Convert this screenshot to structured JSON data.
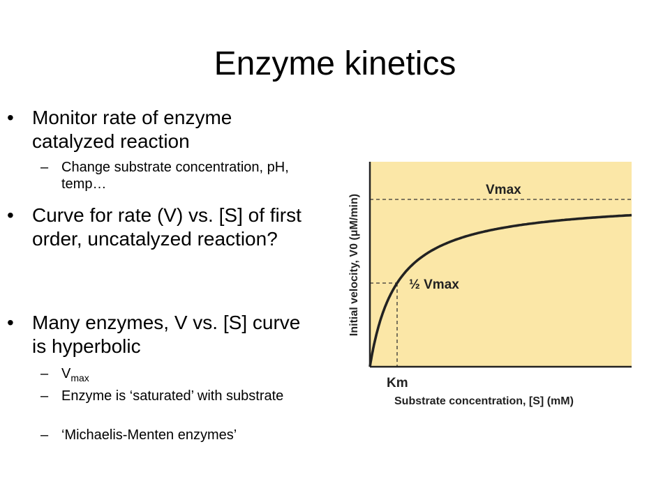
{
  "slide": {
    "title": "Enzyme kinetics",
    "bullets": [
      "Monitor rate of enzyme catalyzed reaction",
      "Curve for rate (V) vs. [S] of first order, uncatalyzed reaction?",
      "Many enzymes, V vs. [S] curve is hyperbolic"
    ],
    "sub_bullets": [
      "Change substrate concentration, pH, temp…",
      "V",
      "Enzyme is ‘saturated’ with substrate",
      "‘Michaelis-Menten enzymes’"
    ],
    "vmax_subscript": "max"
  },
  "chart_data": {
    "type": "line",
    "xlabel": "Substrate concentration, [S] (mM)",
    "ylabel": "Initial velocity, V0 (μM/min)",
    "annotations": {
      "vmax": "Vmax",
      "half_vmax": "½ Vmax",
      "km": "Km"
    },
    "curve": "hyperbolic (Michaelis-Menten)",
    "colors": {
      "plot_background": "#fbe7a7",
      "curve": "#222222"
    }
  }
}
